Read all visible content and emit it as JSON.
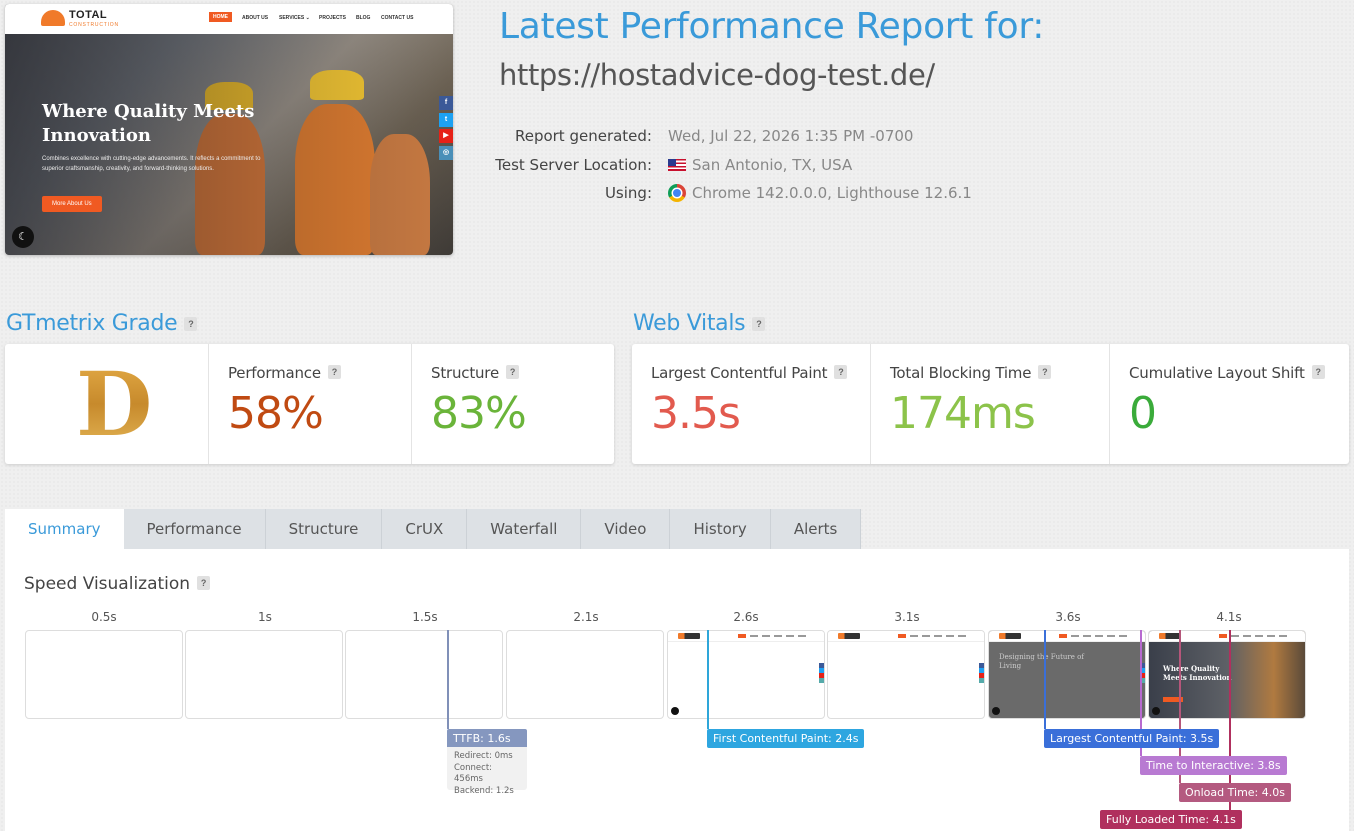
{
  "thumbnail": {
    "logo_text": "TOTAL",
    "logo_sub": "CONSTRUCTION",
    "nav": [
      "HOME",
      "ABOUT US",
      "SERVICES ⌄",
      "PROJECTS",
      "BLOG",
      "CONTACT US"
    ],
    "hero_title": "Where Quality Meets Innovation",
    "hero_text": "Combines excellence with cutting-edge advancements. It reflects a commitment to superior craftsmanship, creativity, and forward-thinking solutions.",
    "hero_button": "More About Us",
    "social": [
      "f",
      "t",
      "▶",
      "◎"
    ]
  },
  "header": {
    "title": "Latest Performance Report for:",
    "url": "https://hostadvice-dog-test.de/"
  },
  "meta": {
    "report_generated_label": "Report generated:",
    "report_generated_value": "Wed, Jul 22, 2026 1:35 PM -0700",
    "location_label": "Test Server Location:",
    "location_value": "San Antonio, TX, USA",
    "using_label": "Using:",
    "using_value": "Chrome 142.0.0.0, Lighthouse 12.6.1"
  },
  "gtmetrix": {
    "title": "GTmetrix Grade",
    "help": "?",
    "grade": "D",
    "performance_label": "Performance",
    "performance_value": "58%",
    "structure_label": "Structure",
    "structure_value": "83%"
  },
  "vitals": {
    "title": "Web Vitals",
    "help": "?",
    "lcp_label": "Largest Contentful Paint",
    "lcp_value": "3.5s",
    "tbt_label": "Total Blocking Time",
    "tbt_value": "174ms",
    "cls_label": "Cumulative Layout Shift",
    "cls_value": "0"
  },
  "colors": {
    "accent": "#3a9ad9",
    "performance": "#c04a12",
    "structure": "#6ab43a",
    "lcp": "#e25a4e",
    "tbt": "#8cc34a",
    "cls": "#3aab3a"
  },
  "tabs": [
    {
      "label": "Summary",
      "active": true
    },
    {
      "label": "Performance"
    },
    {
      "label": "Structure"
    },
    {
      "label": "CrUX"
    },
    {
      "label": "Waterfall"
    },
    {
      "label": "Video"
    },
    {
      "label": "History"
    },
    {
      "label": "Alerts"
    }
  ],
  "speed": {
    "title": "Speed Visualization",
    "help": "?",
    "timeline_labels": [
      "0.5s",
      "1s",
      "1.5s",
      "2.1s",
      "2.6s",
      "3.1s",
      "3.6s",
      "4.1s"
    ],
    "frame_text_dark": "Designing the Future of Living",
    "frame_text_final": "Where Quality Meets Innovation",
    "markers": {
      "ttfb": "TTFB: 1.6s",
      "ttfb_redirect": "Redirect: 0ms",
      "ttfb_connect": "Connect: 456ms",
      "ttfb_backend": "Backend: 1.2s",
      "fcp": "First Contentful Paint: 2.4s",
      "lcp": "Largest Contentful Paint: 3.5s",
      "tti": "Time to Interactive: 3.8s",
      "onload": "Onload Time: 4.0s",
      "fully": "Fully Loaded Time: 4.1s"
    }
  }
}
